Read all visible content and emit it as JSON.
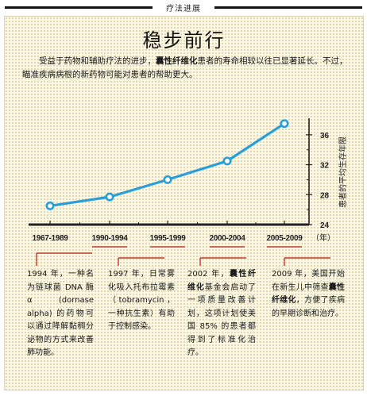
{
  "header": {
    "section_label": "疗法进展"
  },
  "title": "稳步前行",
  "intro": {
    "text_before": "受益于药物和辅助疗法的进步，",
    "text_bold": "囊性纤维化",
    "text_after": "患者的寿命相较以往已显著延长。不过，瞄准疾病病根的新药物可能对患者的帮助更大。"
  },
  "chart_data": {
    "type": "line",
    "categories": [
      "1967-1989",
      "1990-1994",
      "1995-1999",
      "2000-2004",
      "2005-2009"
    ],
    "series": [
      {
        "values": [
          26.5,
          27.7,
          30.0,
          32.5,
          37.5
        ]
      }
    ],
    "ylabel": "患者的平均生存年限",
    "x_unit": "（年）",
    "yticks": [
      24,
      28,
      32,
      36
    ],
    "ylim": [
      24,
      38
    ],
    "line_color": "#2a9ed8",
    "axis_color": "#222222",
    "accent_color": "#c0392b",
    "grid": false
  },
  "notes": [
    {
      "segments": [
        {
          "text": "1994 年，一种名为链球菌 DNA 酶 α (dornase alpha) 的药物可以通过降解黏稠分泌物的方式来改善肺功能。",
          "bold": false
        }
      ]
    },
    {
      "segments": [
        {
          "text": "1997 年，日常雾化吸入托布拉霉素（tobramycin，一种抗生素）有助于控制感染。",
          "bold": false
        }
      ]
    },
    {
      "segments": [
        {
          "text": "2002 年，",
          "bold": false
        },
        {
          "text": "囊性纤维化",
          "bold": true
        },
        {
          "text": "基金会启动了一项质量改善计划，这项计划使美国 85% 的患者都得到了标准化治疗。",
          "bold": false
        }
      ]
    },
    {
      "segments": [
        {
          "text": "2009 年，美国开始在新生儿中筛查",
          "bold": false
        },
        {
          "text": "囊性纤维化",
          "bold": true
        },
        {
          "text": "，方便了疾病的早期诊断和治疗。",
          "bold": false
        }
      ]
    }
  ]
}
